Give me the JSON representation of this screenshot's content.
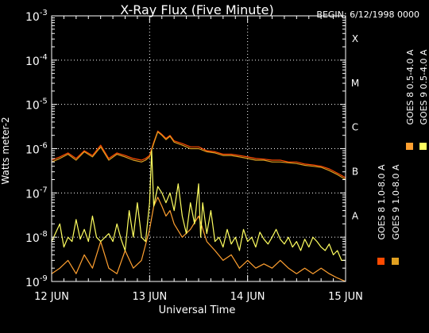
{
  "chart_data": {
    "type": "line",
    "title": "X-Ray Flux (Five Minute)",
    "begin_label": "BEGIN: 6/12/1998 0000",
    "xlabel": "Universal Time",
    "ylabel": "Watts meter-2",
    "y_scale": "log",
    "ylim": [
      1e-09,
      0.001
    ],
    "xlim": [
      0,
      72
    ],
    "x_unit": "hours from 1998-06-12 00:00 UT",
    "x_ticks": [
      {
        "value": 0,
        "label": "12 JUN"
      },
      {
        "value": 24,
        "label": "13 JUN"
      },
      {
        "value": 48,
        "label": "14 JUN"
      },
      {
        "value": 72,
        "label": "15 JUN"
      }
    ],
    "y_ticks": [
      {
        "value": 1e-09,
        "base": "10",
        "exp": "-9"
      },
      {
        "value": 1e-08,
        "base": "10",
        "exp": "-8"
      },
      {
        "value": 1e-07,
        "base": "10",
        "exp": "-7"
      },
      {
        "value": 1e-06,
        "base": "10",
        "exp": "-6"
      },
      {
        "value": 1e-05,
        "base": "10",
        "exp": "-5"
      },
      {
        "value": 0.0001,
        "base": "10",
        "exp": "-4"
      },
      {
        "value": 0.001,
        "base": "10",
        "exp": "-3"
      }
    ],
    "flare_classes": [
      {
        "label": "A",
        "value": 1e-08
      },
      {
        "label": "B",
        "value": 1e-07
      },
      {
        "label": "C",
        "value": 1e-06
      },
      {
        "label": "M",
        "value": 1e-05
      },
      {
        "label": "X",
        "value": 0.0001
      }
    ],
    "grid": "dotted at decades and day boundaries",
    "legend_position": "right, vertical",
    "series": [
      {
        "name": "GOES 8 1.0-8.0 A",
        "color": "#ff4a00",
        "points": [
          [
            0,
            5.5e-07
          ],
          [
            2,
            6.5e-07
          ],
          [
            4,
            8e-07
          ],
          [
            6,
            6e-07
          ],
          [
            8,
            9e-07
          ],
          [
            10,
            7e-07
          ],
          [
            12,
            1.2e-06
          ],
          [
            14,
            6e-07
          ],
          [
            16,
            8e-07
          ],
          [
            18,
            7e-07
          ],
          [
            20,
            6e-07
          ],
          [
            22,
            5.5e-07
          ],
          [
            23,
            6e-07
          ],
          [
            24,
            7e-07
          ],
          [
            25,
            1.4e-06
          ],
          [
            26,
            2.5e-06
          ],
          [
            27,
            2.1e-06
          ],
          [
            28,
            1.7e-06
          ],
          [
            29,
            2e-06
          ],
          [
            30,
            1.5e-06
          ],
          [
            32,
            1.3e-06
          ],
          [
            34,
            1.1e-06
          ],
          [
            36,
            1.1e-06
          ],
          [
            38,
            9e-07
          ],
          [
            40,
            8.5e-07
          ],
          [
            42,
            7.5e-07
          ],
          [
            44,
            7.5e-07
          ],
          [
            46,
            7e-07
          ],
          [
            48,
            6.5e-07
          ],
          [
            50,
            6e-07
          ],
          [
            52,
            5.8e-07
          ],
          [
            54,
            5.5e-07
          ],
          [
            56,
            5.5e-07
          ],
          [
            58,
            5e-07
          ],
          [
            60,
            5e-07
          ],
          [
            62,
            4.5e-07
          ],
          [
            64,
            4.3e-07
          ],
          [
            66,
            4e-07
          ],
          [
            68,
            3.5e-07
          ],
          [
            70,
            2.8e-07
          ],
          [
            72,
            2.2e-07
          ]
        ]
      },
      {
        "name": "GOES 8 0.5-4.0 A",
        "color": "#ffa030",
        "points": [
          [
            0,
            1.5e-09
          ],
          [
            2,
            2e-09
          ],
          [
            4,
            3e-09
          ],
          [
            6,
            1.5e-09
          ],
          [
            8,
            4e-09
          ],
          [
            10,
            2e-09
          ],
          [
            12,
            8e-09
          ],
          [
            14,
            2e-09
          ],
          [
            16,
            1.5e-09
          ],
          [
            18,
            5e-09
          ],
          [
            20,
            2e-09
          ],
          [
            22,
            3e-09
          ],
          [
            24,
            1.5e-08
          ],
          [
            25,
            5e-08
          ],
          [
            26,
            8e-08
          ],
          [
            27,
            5e-08
          ],
          [
            28,
            3e-08
          ],
          [
            29,
            4e-08
          ],
          [
            30,
            2e-08
          ],
          [
            32,
            1e-08
          ],
          [
            34,
            1.5e-08
          ],
          [
            36,
            3e-08
          ],
          [
            38,
            8e-09
          ],
          [
            40,
            5e-09
          ],
          [
            42,
            3e-09
          ],
          [
            44,
            4e-09
          ],
          [
            46,
            2e-09
          ],
          [
            48,
            3e-09
          ],
          [
            50,
            2e-09
          ],
          [
            52,
            2.5e-09
          ],
          [
            54,
            2e-09
          ],
          [
            56,
            3e-09
          ],
          [
            58,
            2e-09
          ],
          [
            60,
            1.5e-09
          ],
          [
            62,
            2e-09
          ],
          [
            64,
            1.5e-09
          ],
          [
            66,
            2e-09
          ],
          [
            68,
            1.5e-09
          ],
          [
            70,
            1.2e-09
          ],
          [
            72,
            1e-09
          ]
        ]
      },
      {
        "name": "GOES 9 1.0-8.0 A",
        "color": "#e0a020",
        "points": [
          [
            0,
            5e-07
          ],
          [
            2,
            6e-07
          ],
          [
            4,
            7.5e-07
          ],
          [
            6,
            5.5e-07
          ],
          [
            8,
            8.5e-07
          ],
          [
            10,
            6.5e-07
          ],
          [
            12,
            1.1e-06
          ],
          [
            14,
            5.5e-07
          ],
          [
            16,
            7.5e-07
          ],
          [
            18,
            6.5e-07
          ],
          [
            20,
            5.5e-07
          ],
          [
            22,
            5e-07
          ],
          [
            23,
            5.5e-07
          ],
          [
            24,
            6.5e-07
          ],
          [
            25,
            1.3e-06
          ],
          [
            26,
            2.4e-06
          ],
          [
            27,
            2e-06
          ],
          [
            28,
            1.6e-06
          ],
          [
            29,
            1.9e-06
          ],
          [
            30,
            1.4e-06
          ],
          [
            32,
            1.2e-06
          ],
          [
            34,
            1e-06
          ],
          [
            36,
            1e-06
          ],
          [
            38,
            8.5e-07
          ],
          [
            40,
            8e-07
          ],
          [
            42,
            7e-07
          ],
          [
            44,
            7e-07
          ],
          [
            46,
            6.5e-07
          ],
          [
            48,
            6e-07
          ],
          [
            50,
            5.5e-07
          ],
          [
            52,
            5.5e-07
          ],
          [
            54,
            5e-07
          ],
          [
            56,
            5e-07
          ],
          [
            58,
            4.8e-07
          ],
          [
            60,
            4.6e-07
          ],
          [
            62,
            4.2e-07
          ],
          [
            64,
            4e-07
          ],
          [
            66,
            3.8e-07
          ],
          [
            68,
            3.2e-07
          ],
          [
            70,
            2.6e-07
          ],
          [
            72,
            2e-07
          ]
        ]
      },
      {
        "name": "GOES 9 0.5-4.0 A",
        "color": "#ffff60",
        "points": [
          [
            0,
            8e-09
          ],
          [
            2,
            2e-08
          ],
          [
            3,
            6e-09
          ],
          [
            4,
            1e-08
          ],
          [
            5,
            8e-09
          ],
          [
            6,
            2.5e-08
          ],
          [
            7,
            9e-09
          ],
          [
            8,
            1.5e-08
          ],
          [
            9,
            8e-09
          ],
          [
            10,
            3e-08
          ],
          [
            11,
            1e-08
          ],
          [
            12,
            8e-09
          ],
          [
            14,
            1.2e-08
          ],
          [
            15,
            8e-09
          ],
          [
            16,
            2e-08
          ],
          [
            17,
            9e-09
          ],
          [
            18,
            5e-09
          ],
          [
            19,
            4e-08
          ],
          [
            20,
            1e-08
          ],
          [
            21,
            6e-08
          ],
          [
            22,
            1e-08
          ],
          [
            23,
            8e-09
          ],
          [
            24,
            6e-08
          ],
          [
            24.5,
            9e-07
          ],
          [
            25,
            5e-08
          ],
          [
            26,
            1.4e-07
          ],
          [
            27,
            1e-07
          ],
          [
            28,
            6e-08
          ],
          [
            29,
            1e-07
          ],
          [
            30,
            4e-08
          ],
          [
            31,
            1.6e-07
          ],
          [
            32,
            3e-08
          ],
          [
            33,
            1.2e-08
          ],
          [
            34,
            6e-08
          ],
          [
            35,
            2e-08
          ],
          [
            36,
            1.6e-07
          ],
          [
            36.5,
            1e-08
          ],
          [
            37,
            6e-08
          ],
          [
            38,
            1.2e-08
          ],
          [
            39,
            4e-08
          ],
          [
            40,
            8e-09
          ],
          [
            41,
            1e-08
          ],
          [
            42,
            6e-09
          ],
          [
            43,
            1.5e-08
          ],
          [
            44,
            7e-09
          ],
          [
            45,
            1e-08
          ],
          [
            46,
            5e-09
          ],
          [
            47,
            1.5e-08
          ],
          [
            48,
            8e-09
          ],
          [
            49,
            1e-08
          ],
          [
            50,
            6e-09
          ],
          [
            51,
            1.3e-08
          ],
          [
            52,
            9e-09
          ],
          [
            53,
            7e-09
          ],
          [
            54,
            1e-08
          ],
          [
            55,
            1.5e-08
          ],
          [
            56,
            9e-09
          ],
          [
            57,
            7e-09
          ],
          [
            58,
            1e-08
          ],
          [
            59,
            6e-09
          ],
          [
            60,
            8e-09
          ],
          [
            61,
            5e-09
          ],
          [
            62,
            9e-09
          ],
          [
            63,
            6e-09
          ],
          [
            64,
            1e-08
          ],
          [
            65,
            8e-09
          ],
          [
            66,
            6e-09
          ],
          [
            67,
            5e-09
          ],
          [
            68,
            7e-09
          ],
          [
            69,
            4e-09
          ],
          [
            70,
            5e-09
          ],
          [
            71,
            3e-09
          ],
          [
            72,
            3e-09
          ]
        ]
      }
    ]
  }
}
